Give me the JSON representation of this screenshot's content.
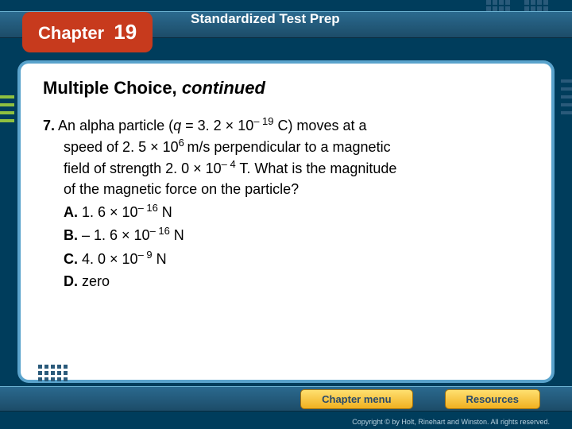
{
  "header": {
    "chapter_label": "Chapter",
    "chapter_number": "19",
    "title": "Standardized Test Prep"
  },
  "section": {
    "title_main": "Multiple Choice,",
    "title_italic": "continued"
  },
  "question": {
    "number": "7.",
    "line1": "An alpha particle (",
    "q_var": "q",
    "q_eq": " = 3. 2 × 10",
    "q_exp": "– 19",
    "q_unit": " C) moves at a",
    "line2": "speed of 2. 5 × 10",
    "speed_exp": "6 ",
    "line2b": "m/s perpendicular to a magnetic",
    "line3": "field of strength 2. 0 × 10",
    "field_exp": "– 4",
    "line3b": " T. What is the magnitude",
    "line4": "of the magnetic force on the particle?"
  },
  "answers": {
    "a_label": "A.",
    "a_val": " 1. 6 × 10",
    "a_exp": "– 16",
    "a_unit": " N",
    "b_label": "B.",
    "b_val": " – 1. 6 × 10",
    "b_exp": "– 16",
    "b_unit": " N",
    "c_label": "C.",
    "c_val": " 4. 0 × 10",
    "c_exp": "– 9",
    "c_unit": " N",
    "d_label": "D.",
    "d_val": " zero"
  },
  "nav": {
    "chapter_menu": "Chapter menu",
    "resources": "Resources"
  },
  "footer": {
    "copyright": "Copyright © by Holt, Rinehart and Winston. All rights reserved."
  },
  "colors": {
    "bg": "#003d5c",
    "accent": "#c73a1d",
    "frame": "#5aa3cc",
    "btn_grad_top": "#ffe070",
    "btn_grad_bot": "#f0b020",
    "green": "#8fc040"
  }
}
